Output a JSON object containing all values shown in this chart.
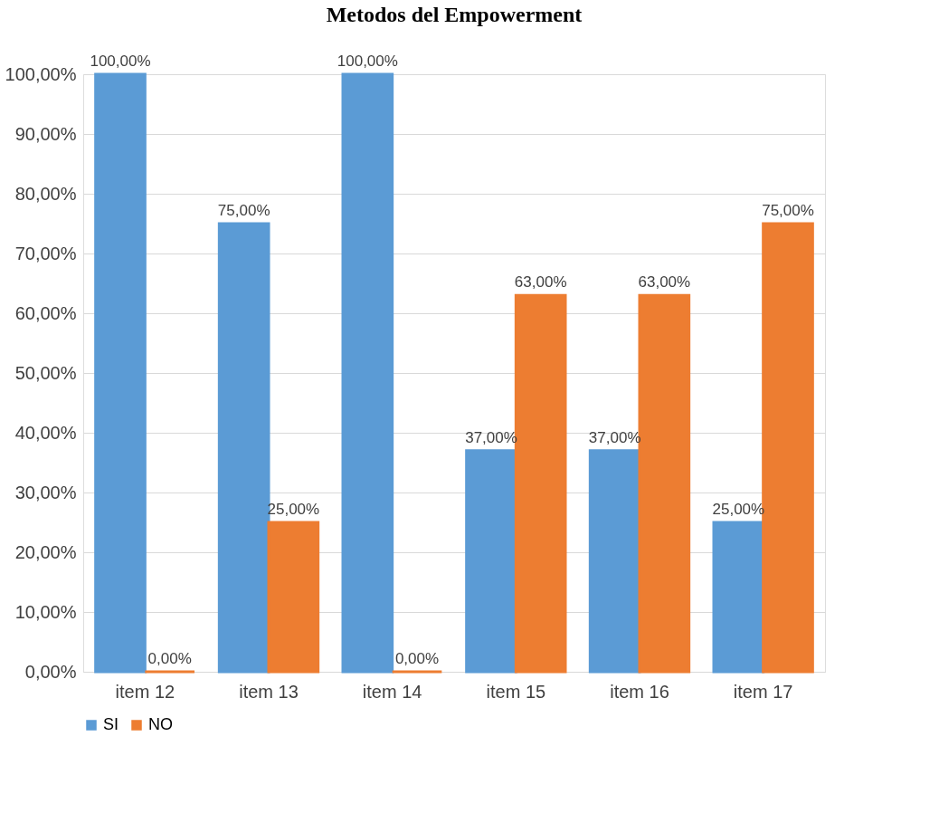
{
  "chart_data": {
    "type": "bar",
    "title": "Metodos del Empowerment",
    "categories": [
      "item  12",
      "item  13",
      "item  14",
      "item  15",
      "item  16",
      "item  17"
    ],
    "series": [
      {
        "name": "SI",
        "color": "#5b9bd5",
        "values": [
          100,
          75,
          100,
          37,
          37,
          25
        ],
        "value_labels": [
          "100,00%",
          "75,00%",
          "100,00%",
          "37,00%",
          "37,00%",
          "25,00%"
        ]
      },
      {
        "name": "NO",
        "color": "#ed7d31",
        "values": [
          0,
          25,
          0,
          63,
          63,
          75
        ],
        "value_labels": [
          "0,00%",
          "25,00%",
          "0,00%",
          "63,00%",
          "63,00%",
          "75,00%"
        ]
      }
    ],
    "ylim": [
      0,
      100
    ],
    "yticks": [
      {
        "value": 0,
        "label": "0,00%"
      },
      {
        "value": 10,
        "label": "10,00%"
      },
      {
        "value": 20,
        "label": "20,00%"
      },
      {
        "value": 30,
        "label": "30,00%"
      },
      {
        "value": 40,
        "label": "40,00%"
      },
      {
        "value": 50,
        "label": "50,00%"
      },
      {
        "value": 60,
        "label": "60,00%"
      },
      {
        "value": 70,
        "label": "70,00%"
      },
      {
        "value": 80,
        "label": "80,00%"
      },
      {
        "value": 90,
        "label": "90,00%"
      },
      {
        "value": 100,
        "label": "100,00%"
      }
    ],
    "grid": "y",
    "legend": "bottom"
  }
}
